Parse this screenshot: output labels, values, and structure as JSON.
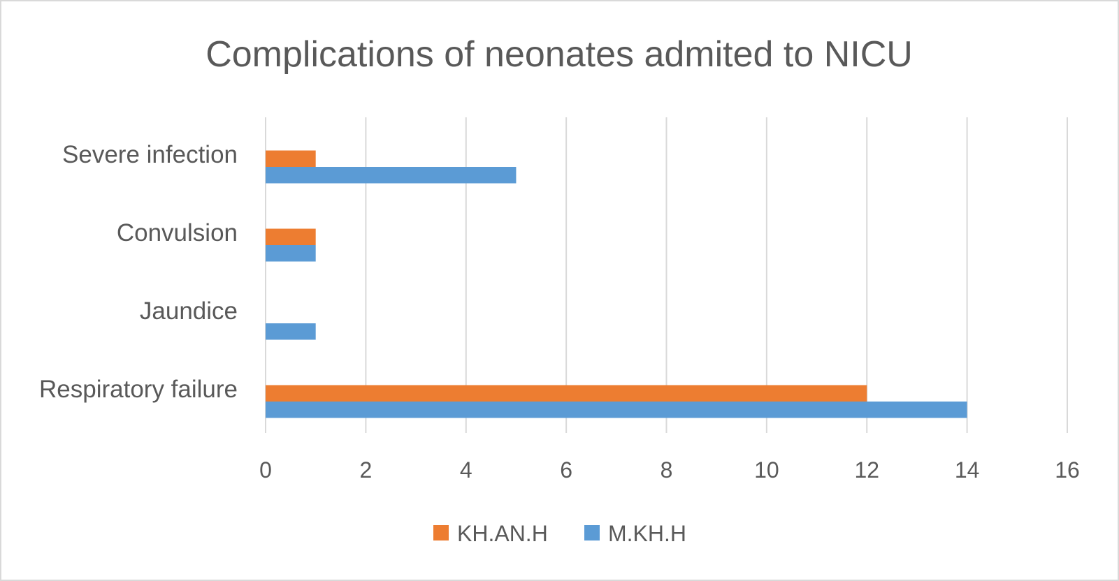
{
  "chart_data": {
    "type": "bar",
    "orientation": "horizontal",
    "title": "Complications of neonates admited to NICU",
    "categories": [
      "Severe infection",
      "Convulsion",
      "Jaundice",
      "Respiratory failure"
    ],
    "series": [
      {
        "name": "KH.AN.H",
        "color": "#ED7D31",
        "values": [
          1,
          1,
          0,
          12
        ]
      },
      {
        "name": "M.KH.H",
        "color": "#5B9BD5",
        "values": [
          5,
          1,
          1,
          14
        ]
      }
    ],
    "xlim": [
      0,
      16
    ],
    "xticks": [
      "0",
      "2",
      "4",
      "6",
      "8",
      "10",
      "12",
      "14",
      "16"
    ],
    "grid": true,
    "legend": "bottom"
  }
}
